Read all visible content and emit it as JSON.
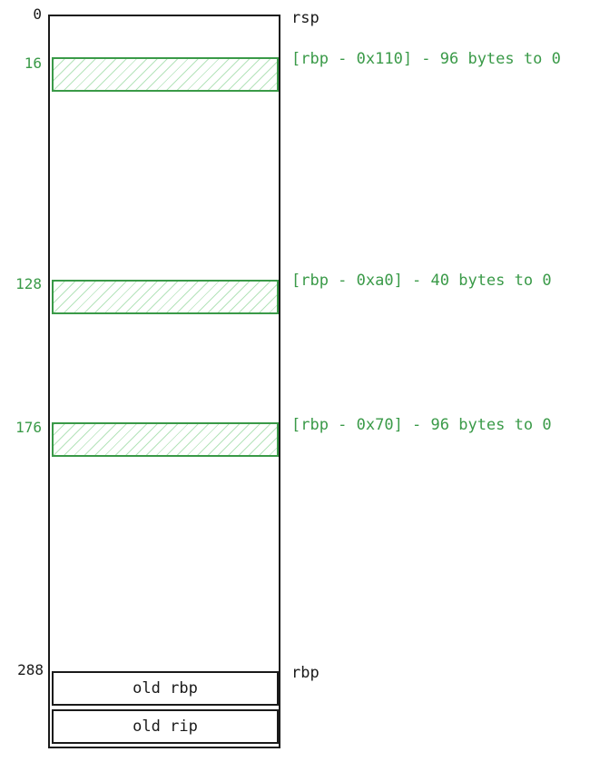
{
  "offsets": {
    "top": "0",
    "buf1": "16",
    "buf2": "128",
    "buf3": "176",
    "rbp": "288"
  },
  "registers": {
    "rsp": "rsp",
    "rbp": "rbp"
  },
  "regions": [
    {
      "label": "[rbp - 0x110] - 96 bytes to 0"
    },
    {
      "label": "[rbp - 0xa0] - 40 bytes to 0"
    },
    {
      "label": "[rbp - 0x70] - 96 bytes to 0"
    }
  ],
  "saved_slots": {
    "old_rbp": "old rbp",
    "old_rip": "old rip"
  },
  "colors": {
    "zeroed_region": "#3a9a48",
    "frame": "#1a1a1a"
  }
}
